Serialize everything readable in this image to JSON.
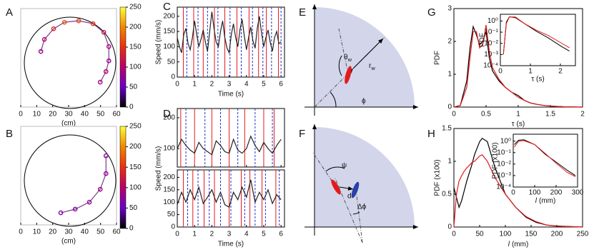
{
  "chart_data": [
    {
      "label": "A",
      "type": "trajectory",
      "x": [
        12.6,
        14.8,
        20.6,
        27.4,
        36.3,
        45.3,
        52.0,
        55.2,
        55.2,
        53.4,
        49.8
      ],
      "y": [
        35.0,
        42.6,
        49.3,
        53.4,
        54.3,
        52.5,
        47.1,
        38.1,
        29.1,
        22.4,
        15.7
      ],
      "speed": [
        80,
        100,
        140,
        170,
        160,
        150,
        120,
        90,
        80,
        100,
        90
      ],
      "xlim": [
        0,
        60
      ],
      "ylim": [
        0,
        62
      ],
      "xticks": [
        0,
        10,
        20,
        30,
        40,
        50,
        60
      ],
      "xlabel": "(cm)",
      "clim": [
        0,
        250
      ],
      "cticks": [
        0,
        50,
        100,
        150,
        200,
        250
      ],
      "colormap": [
        "#000000",
        "#6a00c8",
        "#b8006a",
        "#e83010",
        "#f08800",
        "#ffff33"
      ]
    },
    {
      "label": "B",
      "type": "trajectory",
      "x": [
        25.1,
        34.1,
        43.0,
        49.8,
        53.4,
        53.4
      ],
      "y": [
        7.6,
        9.9,
        14.3,
        22.4,
        32.3,
        43.5
      ],
      "speed": [
        60,
        70,
        80,
        90,
        80,
        70
      ],
      "xlim": [
        0,
        60
      ],
      "ylim": [
        0,
        62
      ],
      "xticks": [
        0,
        10,
        20,
        30,
        40,
        50,
        60
      ],
      "xlabel": "(cm)",
      "clim": [
        0,
        250
      ],
      "cticks": [
        0,
        50,
        100,
        150,
        200,
        250
      ],
      "colormap": [
        "#000000",
        "#6a00c8",
        "#b8006a",
        "#e83010",
        "#f08800",
        "#ffff33"
      ]
    },
    {
      "label": "C",
      "type": "line",
      "xlabel": "Time (s)",
      "ylabel": "Speed (mm/s)",
      "xlim": [
        0,
        6.2
      ],
      "xticks": [
        0,
        1,
        2,
        3,
        4,
        5,
        6
      ],
      "ylim": [
        0,
        230
      ],
      "yticks": [
        0,
        50,
        100,
        150,
        200
      ],
      "x": [
        0,
        0.125,
        0.25,
        0.375,
        0.5,
        0.625,
        0.75,
        0.875,
        1,
        1.125,
        1.25,
        1.375,
        1.5,
        1.625,
        1.75,
        1.875,
        2,
        2.125,
        2.25,
        2.375,
        2.5,
        2.625,
        2.75,
        2.875,
        3,
        3.125,
        3.25,
        3.375,
        3.5,
        3.625,
        3.75,
        3.875,
        4,
        4.125,
        4.25,
        4.375,
        4.5,
        4.625,
        4.75,
        4.875,
        5,
        5.125,
        5.25,
        5.375,
        5.5,
        5.625,
        5.75,
        5.875,
        6
      ],
      "series": [
        {
          "color": "#222222",
          "values": [
            130,
            100,
            80,
            140,
            160,
            110,
            90,
            130,
            185,
            140,
            100,
            125,
            155,
            115,
            85,
            150,
            215,
            160,
            115,
            100,
            150,
            185,
            130,
            95,
            80,
            140,
            175,
            130,
            100,
            155,
            190,
            135,
            90,
            130,
            165,
            120,
            95,
            160,
            200,
            145,
            100,
            130,
            155,
            115,
            85,
            130,
            150,
            110,
            115
          ]
        }
      ],
      "events": [
        {
          "color": "#e41a1c",
          "style": "solid",
          "times": [
            0.35,
            0.95,
            1.5,
            2.15,
            2.75,
            3.45,
            4.15,
            4.7,
            5.15,
            5.85
          ]
        },
        {
          "color": "#2233cc",
          "style": "dashed",
          "times": [
            0.55,
            1.2,
            1.75,
            2.35,
            3.05,
            3.7,
            4.35,
            4.95,
            5.45,
            6.0
          ]
        }
      ]
    },
    {
      "label": "D",
      "type": "line",
      "xlabel": "Time (s)",
      "ylabel": "Speed (mm/s)",
      "xlim": [
        0,
        6.2
      ],
      "xticks": [
        0,
        1,
        2,
        3,
        4,
        5,
        6
      ],
      "subplots": [
        {
          "ylim": [
            40,
            230
          ],
          "yticks": [
            100,
            200
          ],
          "x": [
            0,
            0.25,
            0.5,
            0.75,
            1,
            1.25,
            1.5,
            1.75,
            2,
            2.25,
            2.5,
            2.75,
            3,
            3.25,
            3.5,
            3.75,
            4,
            4.25,
            4.5,
            4.75,
            5,
            5.25,
            5.5,
            5.75,
            6
          ],
          "series": [
            {
              "color": "#222222",
              "values": [
                100,
                130,
                110,
                95,
                85,
                120,
                100,
                90,
                80,
                125,
                110,
                90,
                85,
                130,
                95,
                85,
                100,
                140,
                110,
                90,
                120,
                100,
                85,
                110,
                130
              ]
            }
          ],
          "events": [
            {
              "color": "#e41a1c",
              "style": "solid",
              "times": [
                0.2,
                1.0,
                2.0,
                3.0,
                3.9,
                5.0,
                5.6
              ]
            },
            {
              "color": "#2233cc",
              "style": "dashed",
              "times": [
                0.5,
                1.6,
                2.5,
                3.5,
                4.5,
                5.5
              ]
            }
          ]
        },
        {
          "ylim": [
            0,
            230
          ],
          "yticks": [
            0,
            50,
            100,
            150,
            200
          ],
          "x": [
            0,
            0.25,
            0.5,
            0.75,
            1,
            1.25,
            1.5,
            1.75,
            2,
            2.25,
            2.5,
            2.75,
            3,
            3.25,
            3.5,
            3.75,
            4,
            4.25,
            4.5,
            4.75,
            5,
            5.25,
            5.5,
            5.75,
            6
          ],
          "series": [
            {
              "color": "#222222",
              "values": [
                90,
                140,
                100,
                150,
                110,
                160,
                95,
                120,
                150,
                100,
                140,
                90,
                80,
                140,
                110,
                160,
                120,
                190,
                100,
                140,
                110,
                150,
                95,
                130,
                110
              ]
            }
          ],
          "events": [
            {
              "color": "#e41a1c",
              "style": "solid",
              "times": [
                0.35,
                0.9,
                1.55,
                2.15,
                3.0,
                3.7,
                4.2,
                4.9,
                5.7
              ]
            },
            {
              "color": "#2233cc",
              "style": "dashed",
              "times": [
                0.6,
                1.2,
                1.85,
                2.5,
                3.1,
                3.9,
                4.5,
                5.1,
                5.9
              ]
            }
          ]
        }
      ]
    },
    {
      "label": "E",
      "type": "diagram",
      "labels": {
        "theta_w": {
          "sym": "θ",
          "sub": "w"
        },
        "r_w": {
          "sym": "r",
          "sub": "w"
        },
        "phi": "ϕ"
      }
    },
    {
      "label": "F",
      "type": "diagram",
      "labels": {
        "psi": "ψ",
        "d": "d",
        "dphi": "Δϕ"
      }
    },
    {
      "label": "G",
      "type": "line",
      "xlabel": "τ (s)",
      "ylabel": "PDF",
      "xlim": [
        0,
        2
      ],
      "xticks": [
        0,
        0.5,
        1,
        1.5,
        2
      ],
      "ylim": [
        0,
        3
      ],
      "yticks": [
        0,
        1,
        2,
        3
      ],
      "x": [
        0,
        0.1,
        0.2,
        0.25,
        0.3,
        0.35,
        0.4,
        0.45,
        0.5,
        0.55,
        0.6,
        0.7,
        0.8,
        0.9,
        1.0,
        1.1,
        1.2,
        1.3,
        1.4,
        1.5,
        1.7,
        2.0
      ],
      "series": [
        {
          "color": "#000000",
          "values": [
            0,
            0.05,
            0.8,
            1.8,
            2.45,
            2.2,
            1.9,
            2.0,
            2.3,
            1.5,
            1.1,
            0.8,
            0.6,
            0.45,
            0.35,
            0.2,
            0.12,
            0.08,
            0.05,
            0.03,
            0.01,
            0
          ]
        },
        {
          "color": "#e41a1c",
          "values": [
            0,
            0.05,
            0.6,
            1.5,
            2.3,
            2.3,
            1.8,
            1.9,
            2.5,
            1.7,
            1.2,
            0.85,
            0.6,
            0.45,
            0.3,
            0.2,
            0.12,
            0.08,
            0.05,
            0.03,
            0.01,
            0
          ]
        }
      ],
      "inset": {
        "xlabel": "τ (s)",
        "ylabel": "PDF",
        "xlim": [
          0,
          2.5
        ],
        "xticks": [
          0,
          1,
          2
        ],
        "ylim": [
          0.0001,
          4
        ],
        "ylog": true,
        "yticks": [
          {
            "value": 0.0001,
            "label": "10⁻⁴"
          },
          {
            "value": 0.001,
            "label": "10⁻³"
          },
          {
            "value": 0.01,
            "label": "10⁻²"
          },
          {
            "value": 0.1,
            "label": "10⁻¹"
          },
          {
            "value": 1,
            "label": "10⁰"
          }
        ],
        "x": [
          0.1,
          0.2,
          0.3,
          0.5,
          0.8,
          1.2,
          1.6,
          2.0,
          2.3
        ],
        "series": [
          {
            "color": "#000000",
            "values": [
              0.001,
              0.8,
              2.4,
              2,
              0.6,
              0.12,
              0.03,
              0.006,
              0.002
            ]
          },
          {
            "color": "#e41a1c",
            "values": [
              0.001,
              0.6,
              2.3,
              2.3,
              0.6,
              0.15,
              0.05,
              0.012,
              0.004
            ]
          }
        ]
      }
    },
    {
      "label": "H",
      "type": "line",
      "xlabel": {
        "var": "l",
        "unit": "(mm)"
      },
      "ylabel": "PDF (x100)",
      "xlim": [
        0,
        250
      ],
      "xticks": [
        0,
        50,
        100,
        150,
        200,
        250
      ],
      "ylim": [
        0,
        1.5
      ],
      "yticks": [
        0,
        0.5,
        1,
        1.5
      ],
      "x": [
        0,
        5,
        10,
        15,
        20,
        25,
        35,
        40,
        50,
        55,
        65,
        80,
        100,
        120,
        140,
        160,
        180,
        200,
        250
      ],
      "series": [
        {
          "color": "#000000",
          "values": [
            0.6,
            0.45,
            0.3,
            0.4,
            0.55,
            0.7,
            0.95,
            1.1,
            1.3,
            1.35,
            1.3,
            0.9,
            0.5,
            0.3,
            0.15,
            0.07,
            0.03,
            0.015,
            0
          ]
        },
        {
          "color": "#e41a1c",
          "values": [
            0,
            0.5,
            0.7,
            0.78,
            0.85,
            0.9,
            0.98,
            1.0,
            1.08,
            1.1,
            1.0,
            0.75,
            0.5,
            0.3,
            0.16,
            0.08,
            0.03,
            0.012,
            0
          ]
        }
      ],
      "inset": {
        "xlabel": {
          "var": "l",
          "unit": "(mm)"
        },
        "ylabel": "PDF (x100)",
        "xlim": [
          0,
          300
        ],
        "xticks": [
          0,
          100,
          200,
          300
        ],
        "ylim": [
          0.0001,
          4
        ],
        "ylog": true,
        "yticks": [
          {
            "value": 0.0001,
            "label": "10⁻⁴"
          },
          {
            "value": 0.001,
            "label": "10⁻³"
          },
          {
            "value": 0.01,
            "label": "10⁻²"
          },
          {
            "value": 0.1,
            "label": "10⁻¹"
          },
          {
            "value": 1,
            "label": "10⁰"
          }
        ],
        "x": [
          5,
          25,
          50,
          100,
          150,
          200,
          250,
          290
        ],
        "series": [
          {
            "color": "#000000",
            "values": [
              0.5,
              1.2,
              1.3,
              0.5,
              0.07,
              0.015,
              0.003,
              0.001
            ]
          },
          {
            "color": "#e41a1c",
            "values": [
              0.3,
              1.0,
              1.1,
              0.5,
              0.08,
              0.012,
              0.002,
              0.0008
            ]
          }
        ]
      }
    }
  ]
}
